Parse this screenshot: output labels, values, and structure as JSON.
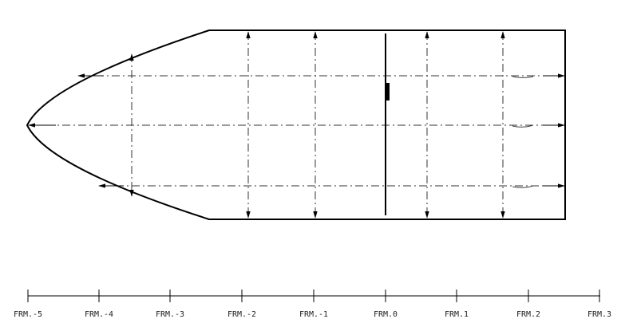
{
  "frame_scale": {
    "labels": [
      "FRM.-5",
      "FRM.-4",
      "FRM.-3",
      "FRM.-2",
      "FRM.-1",
      "FRM.0",
      "FRM.1",
      "FRM.2",
      "FRM.3"
    ]
  },
  "colors": {
    "line": "#000000",
    "background": "#ffffff"
  }
}
